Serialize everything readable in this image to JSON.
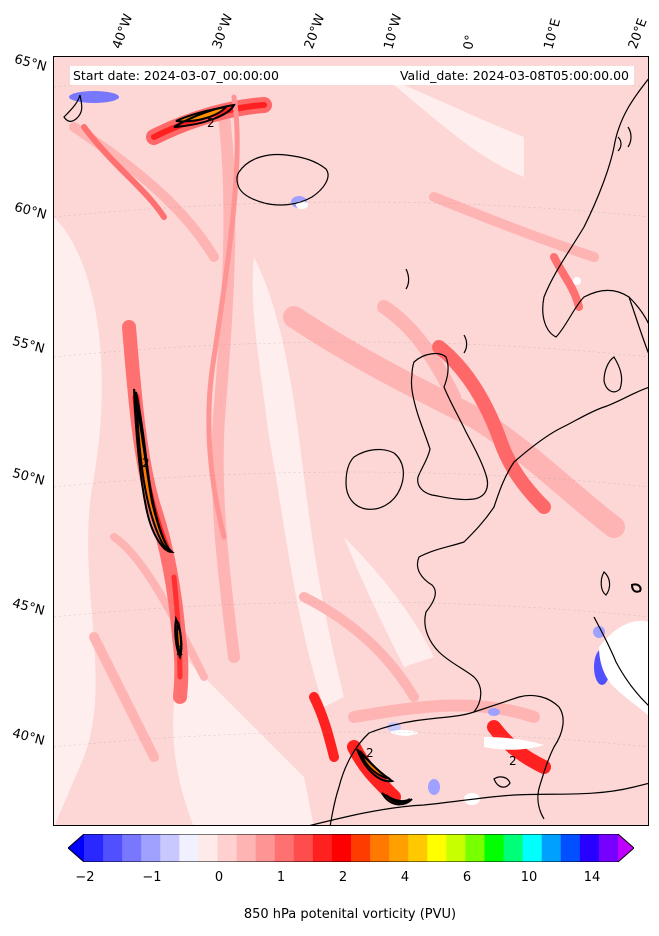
{
  "header": {
    "start_date": "Start date: 2024-03-07_00:00:00",
    "valid_date": "Valid_date: 2024-03-08T05:00:00.00"
  },
  "map": {
    "longitude_labels": [
      "40°W",
      "30°W",
      "20°W",
      "10°W",
      "0°",
      "10°E",
      "20°E"
    ],
    "latitude_labels": [
      "65°N",
      "60°N",
      "55°N",
      "50°N",
      "45°N",
      "40°N"
    ],
    "contour_labels": [
      "2",
      "2",
      "2",
      "2",
      "2"
    ],
    "background_color": "#fdd6d6",
    "coastline_color": "#000000"
  },
  "colorbar": {
    "title": "850 hPa potenital vorticity (PVU)",
    "tick_labels": [
      "−2",
      "−1",
      "0",
      "1",
      "2",
      "4",
      "6",
      "10",
      "14"
    ],
    "colors": [
      "#0000ff",
      "#2828ff",
      "#5050ff",
      "#7878ff",
      "#a0a0ff",
      "#c8c8ff",
      "#f0f0ff",
      "#ffeaea",
      "#ffd0d0",
      "#ffb4b4",
      "#ff9494",
      "#ff7070",
      "#ff4c4c",
      "#ff2020",
      "#ff0000",
      "#ff3c00",
      "#ff7800",
      "#ffa000",
      "#ffc800",
      "#ffff00",
      "#c8ff00",
      "#78ff00",
      "#00ff00",
      "#00ff78",
      "#00ffff",
      "#00a0ff",
      "#0050ff",
      "#2800ff",
      "#7800ff",
      "#c000ff"
    ]
  }
}
